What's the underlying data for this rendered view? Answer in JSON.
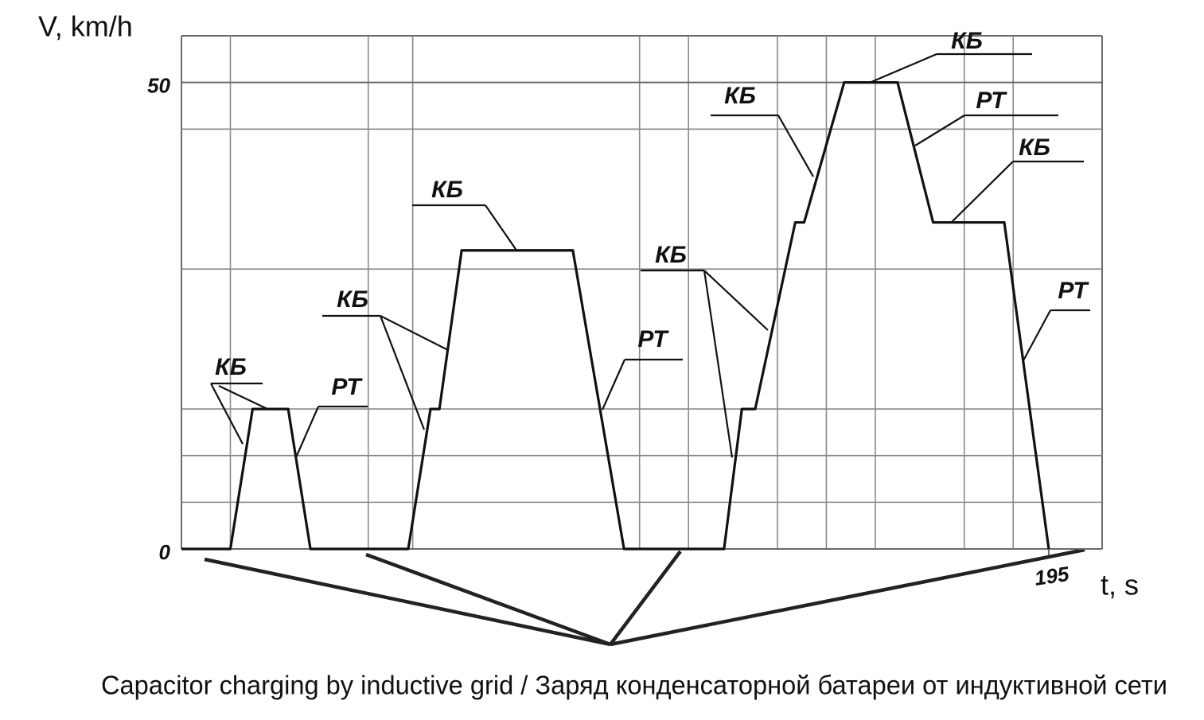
{
  "chart_data": {
    "type": "line",
    "y_label": "V, km/h",
    "x_label": "t, s",
    "caption": "Capacitor charging by inductive grid / Заряд конденсаторной батареи от индуктивной сети",
    "x": [
      0,
      11,
      16,
      24,
      29,
      51,
      56,
      58,
      63,
      88,
      99.5,
      122,
      126,
      129,
      138,
      140,
      149,
      161,
      169,
      185,
      195
    ],
    "values": [
      0,
      0,
      15,
      15,
      0,
      0,
      15,
      15,
      32,
      32,
      0,
      0,
      15,
      15,
      35,
      35,
      50,
      50,
      35,
      35,
      0
    ],
    "color": "#111111",
    "xlim": [
      0,
      207
    ],
    "ylim": [
      0,
      55
    ],
    "xticks": [
      195
    ],
    "yticks": [
      0,
      50
    ],
    "xgrid": [
      11,
      42,
      52,
      103,
      114,
      134,
      145,
      156,
      176,
      187
    ],
    "ygrid": [
      5,
      10,
      15,
      30,
      45
    ],
    "annotations": [
      "КБ",
      "РТ",
      "КБ",
      "КБ",
      "РТ",
      "КБ",
      "КБ",
      "КБ",
      "РТ",
      "КБ",
      "РТ"
    ]
  }
}
